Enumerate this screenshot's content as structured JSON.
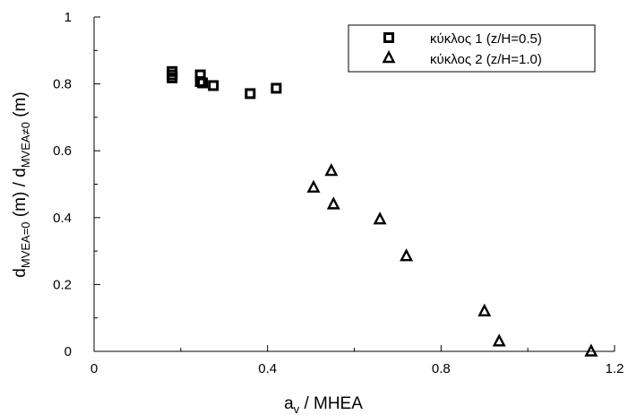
{
  "chart_data": {
    "type": "scatter",
    "title": "",
    "xlabel": {
      "main": "a",
      "sub": "v",
      "rest": " / MHEA"
    },
    "ylabel": {
      "part1": "d",
      "sub1": "MVEA=0",
      "mid": " (m) / d",
      "sub2": "MVEA≠0",
      "end": " (m)"
    },
    "xlim": [
      0,
      1.2
    ],
    "ylim": [
      0,
      1
    ],
    "xticks": [
      {
        "value": 0,
        "label": "0"
      },
      {
        "value": 0.4,
        "label": "0.4"
      },
      {
        "value": 0.8,
        "label": "0.8"
      },
      {
        "value": 1.2,
        "label": "1.2"
      }
    ],
    "xminor": [
      0.2,
      0.6,
      1.0
    ],
    "yticks": [
      {
        "value": 0,
        "label": "0"
      },
      {
        "value": 0.2,
        "label": "0.2"
      },
      {
        "value": 0.4,
        "label": "0.4"
      },
      {
        "value": 0.6,
        "label": "0.6"
      },
      {
        "value": 0.8,
        "label": "0.8"
      },
      {
        "value": 1,
        "label": "1"
      }
    ],
    "yminor": [
      0.1,
      0.3,
      0.5,
      0.7,
      0.9
    ],
    "grid": false,
    "legend_position": "top-right",
    "series": [
      {
        "name": "κύκλος 1 (z/H=0.5)",
        "marker": "square",
        "x": [
          0.18,
          0.18,
          0.18,
          0.245,
          0.245,
          0.25,
          0.275,
          0.36,
          0.42
        ],
        "y": [
          0.837,
          0.827,
          0.818,
          0.827,
          0.807,
          0.803,
          0.795,
          0.771,
          0.787
        ]
      },
      {
        "name": "κύκλος 2 (z/H=1.0)",
        "marker": "triangle",
        "x": [
          0.506,
          0.547,
          0.552,
          0.659,
          0.72,
          0.9,
          0.934,
          1.146
        ],
        "y": [
          0.49,
          0.54,
          0.44,
          0.395,
          0.285,
          0.12,
          0.03,
          0.0
        ]
      }
    ]
  }
}
